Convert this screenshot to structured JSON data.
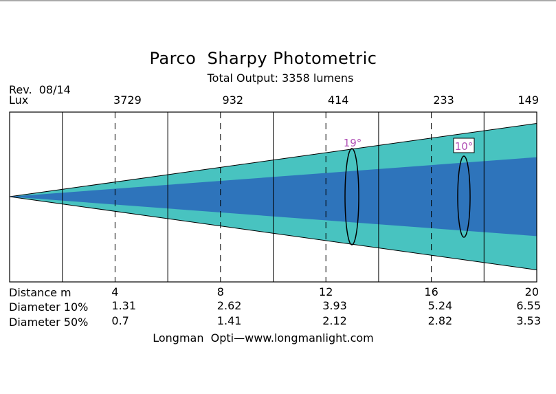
{
  "title": "Parco  Sharpy Photometric",
  "subtitle": "Total Output: 3358 lumens",
  "revision": "Rev.  08/14",
  "footer": "Longman  Opti—www.longmanlight.com",
  "colors": {
    "field_cone": "#48c3c0",
    "beam_cone": "#2e74bb",
    "angle_text": "#b04fb5",
    "lines": "#000000"
  },
  "chart_data": {
    "type": "area",
    "x_max": 20,
    "x_ticks": [
      4,
      8,
      12,
      16,
      20
    ],
    "rows": [
      {
        "label": "Lux",
        "values": [
          "3729",
          "932",
          "414",
          "233",
          "149"
        ]
      },
      {
        "label": "Distance  m",
        "values": [
          "4",
          "8",
          "12",
          "16",
          "20"
        ]
      },
      {
        "label": "Diameter  10%",
        "values": [
          "1.31",
          "2.62",
          "3.93",
          "5.24",
          "6.55"
        ]
      },
      {
        "label": "Diameter  50%",
        "values": [
          "0.7",
          "1.41",
          "2.12",
          "2.82",
          "3.53"
        ]
      }
    ],
    "cones": [
      {
        "name": "field-cone",
        "angle_label": "19°",
        "diameter_at_20m": 6.55
      },
      {
        "name": "beam-cone",
        "angle_label": "10°",
        "diameter_at_20m": 3.53
      }
    ]
  }
}
